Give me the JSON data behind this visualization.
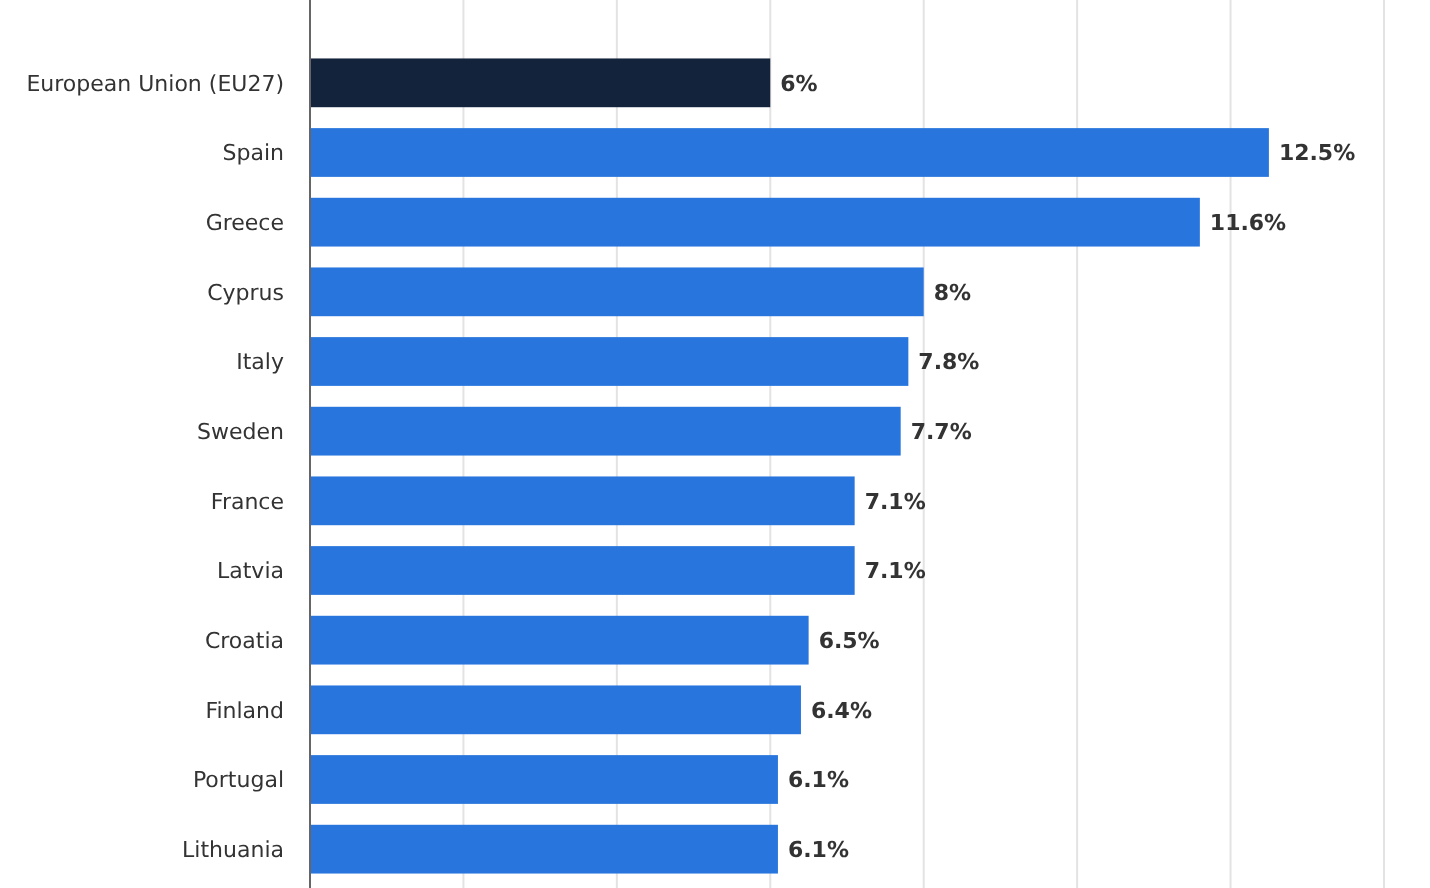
{
  "chart_data": {
    "type": "bar",
    "orientation": "horizontal",
    "categories": [
      "European Union (EU27)",
      "Spain",
      "Greece",
      "Cyprus",
      "Italy",
      "Sweden",
      "France",
      "Latvia",
      "Croatia",
      "Finland",
      "Portugal",
      "Lithuania"
    ],
    "values": [
      6,
      12.5,
      11.6,
      8,
      7.8,
      7.7,
      7.1,
      7.1,
      6.5,
      6.4,
      6.1,
      6.1
    ],
    "colors": [
      "#14233c",
      "#2876dd",
      "#2876dd",
      "#2876dd",
      "#2876dd",
      "#2876dd",
      "#2876dd",
      "#2876dd",
      "#2876dd",
      "#2876dd",
      "#2876dd",
      "#2876dd"
    ],
    "value_labels": [
      "6%",
      "12.5%",
      "11.6%",
      "8%",
      "7.8%",
      "7.7%",
      "7.1%",
      "7.1%",
      "6.5%",
      "6.4%",
      "6.1%",
      "6.1%"
    ],
    "xlim": [
      0,
      14.6
    ],
    "xticks": [
      {
        "value": 0,
        "label": null
      },
      {
        "value": 2,
        "label": null
      },
      {
        "value": 4,
        "label": null
      },
      {
        "value": 6,
        "label": null
      },
      {
        "value": 8,
        "label": null
      },
      {
        "value": 10,
        "label": null
      },
      {
        "value": 12,
        "label": null
      },
      {
        "value": 14,
        "label": null
      }
    ],
    "grid": "x",
    "tick_labels": "y"
  }
}
